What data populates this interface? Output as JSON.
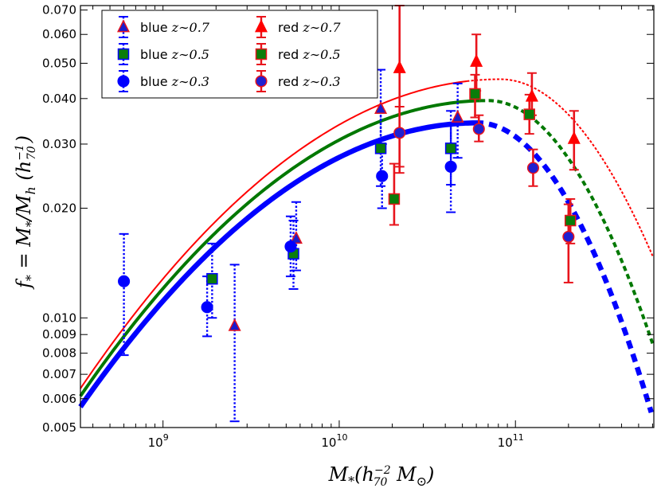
{
  "chart_data": {
    "type": "scatter",
    "title": "",
    "xlabel": "M_*(h_70^-2 M_⊙)",
    "ylabel": "f_* = M_*/M_h (h_70^-1)",
    "xscale": "log",
    "yscale": "log",
    "xlim": [
      340000000.0,
      610000000000.0
    ],
    "ylim": [
      0.005,
      0.072
    ],
    "x_ticks": [
      {
        "value": 1000000000.0,
        "base": "10",
        "exp": "9"
      },
      {
        "value": 10000000000.0,
        "base": "10",
        "exp": "10"
      },
      {
        "value": 100000000000.0,
        "base": "10",
        "exp": "11"
      }
    ],
    "y_ticks": [
      {
        "value": 0.005,
        "label": "0.005"
      },
      {
        "value": 0.006,
        "label": "0.006"
      },
      {
        "value": 0.007,
        "label": "0.007"
      },
      {
        "value": 0.008,
        "label": "0.008"
      },
      {
        "value": 0.009,
        "label": "0.009"
      },
      {
        "value": 0.01,
        "label": "0.010"
      },
      {
        "value": 0.02,
        "label": "0.020"
      },
      {
        "value": 0.03,
        "label": "0.030"
      },
      {
        "value": 0.04,
        "label": "0.040"
      },
      {
        "value": 0.05,
        "label": "0.050"
      },
      {
        "value": 0.06,
        "label": "0.060"
      },
      {
        "value": 0.07,
        "label": "0.070"
      }
    ],
    "legend": {
      "position": "top-left",
      "entries": [
        {
          "sample": "blue",
          "z": "z∼0.7",
          "marker": "triangle",
          "face": "#1b1bcc",
          "edge": "#e8141c",
          "err": "#0000ff",
          "dashed": true
        },
        {
          "sample": "blue",
          "z": "z∼0.5",
          "marker": "square",
          "face": "#0a7d0a",
          "edge": "#0000ff",
          "err": "#0000ff",
          "dashed": true
        },
        {
          "sample": "blue",
          "z": "z∼0.3",
          "marker": "circle",
          "face": "#0000ff",
          "edge": "#0000ff",
          "err": "#0000ff",
          "dashed": true
        },
        {
          "sample": "red",
          "z": "z∼0.7",
          "marker": "triangle",
          "face": "#ff0000",
          "edge": "#ff0000",
          "err": "#e8141c",
          "dashed": false
        },
        {
          "sample": "red",
          "z": "z∼0.5",
          "marker": "square",
          "face": "#0a7d0a",
          "edge": "#e8141c",
          "err": "#e8141c",
          "dashed": false
        },
        {
          "sample": "red",
          "z": "z∼0.3",
          "marker": "circle",
          "face": "#2020d0",
          "edge": "#e8141c",
          "err": "#e8141c",
          "dashed": false
        }
      ]
    },
    "series": [
      {
        "name": "blue z~0.7",
        "marker": "triangle",
        "face": "#1b1bcc",
        "edge": "#e8141c",
        "err": "#0000ff",
        "dashed": true,
        "points": [
          {
            "x": 2550000000.0,
            "y": 0.0095,
            "ylo": 0.0052,
            "yhi": 0.014
          },
          {
            "x": 5700000000.0,
            "y": 0.0165,
            "ylo": 0.0135,
            "yhi": 0.0208
          },
          {
            "x": 17200000000.0,
            "y": 0.0375,
            "ylo": 0.0285,
            "yhi": 0.048
          },
          {
            "x": 47000000000.0,
            "y": 0.0355,
            "ylo": 0.0275,
            "yhi": 0.044
          }
        ]
      },
      {
        "name": "blue z~0.5",
        "marker": "square",
        "face": "#0a7d0a",
        "edge": "#0000ff",
        "err": "#0000ff",
        "dashed": true,
        "points": [
          {
            "x": 1900000000.0,
            "y": 0.0128,
            "ylo": 0.01,
            "yhi": 0.016
          },
          {
            "x": 5500000000.0,
            "y": 0.015,
            "ylo": 0.012,
            "yhi": 0.0185
          },
          {
            "x": 17200000000.0,
            "y": 0.0292,
            "ylo": 0.023,
            "yhi": 0.037
          },
          {
            "x": 43000000000.0,
            "y": 0.0292,
            "ylo": 0.0232,
            "yhi": 0.037
          }
        ]
      },
      {
        "name": "blue z~0.3",
        "marker": "circle",
        "face": "#0000ff",
        "edge": "#0000ff",
        "err": "#0000ff",
        "dashed": true,
        "points": [
          {
            "x": 600000000.0,
            "y": 0.0126,
            "ylo": 0.0079,
            "yhi": 0.017
          },
          {
            "x": 1780000000.0,
            "y": 0.0107,
            "ylo": 0.0089,
            "yhi": 0.013
          },
          {
            "x": 5300000000.0,
            "y": 0.0157,
            "ylo": 0.013,
            "yhi": 0.019
          },
          {
            "x": 17500000000.0,
            "y": 0.0245,
            "ylo": 0.02,
            "yhi": 0.03
          },
          {
            "x": 43000000000.0,
            "y": 0.026,
            "ylo": 0.0195,
            "yhi": 0.034
          }
        ]
      },
      {
        "name": "red z~0.7",
        "marker": "triangle",
        "face": "#ff0000",
        "edge": "#ff0000",
        "err": "#e8141c",
        "dashed": false,
        "points": [
          {
            "x": 22000000000.0,
            "y": 0.0485,
            "ylo": 0.026,
            "yhi": 0.072
          },
          {
            "x": 60000000000.0,
            "y": 0.0505,
            "ylo": 0.042,
            "yhi": 0.06
          },
          {
            "x": 124000000000.0,
            "y": 0.0405,
            "ylo": 0.036,
            "yhi": 0.047
          },
          {
            "x": 215000000000.0,
            "y": 0.031,
            "ylo": 0.0255,
            "yhi": 0.037
          }
        ]
      },
      {
        "name": "red z~0.5",
        "marker": "square",
        "face": "#0a7d0a",
        "edge": "#e8141c",
        "err": "#e8141c",
        "dashed": false,
        "points": [
          {
            "x": 20500000000.0,
            "y": 0.0212,
            "ylo": 0.018,
            "yhi": 0.0265
          },
          {
            "x": 59000000000.0,
            "y": 0.0412,
            "ylo": 0.0355,
            "yhi": 0.0465
          },
          {
            "x": 120000000000.0,
            "y": 0.0362,
            "ylo": 0.032,
            "yhi": 0.041
          },
          {
            "x": 205000000000.0,
            "y": 0.0185,
            "ylo": 0.016,
            "yhi": 0.0212
          }
        ]
      },
      {
        "name": "red z~0.3",
        "marker": "circle",
        "face": "#2020d0",
        "edge": "#e8141c",
        "err": "#e8141c",
        "dashed": false,
        "points": [
          {
            "x": 22000000000.0,
            "y": 0.0322,
            "ylo": 0.025,
            "yhi": 0.038
          },
          {
            "x": 62000000000.0,
            "y": 0.033,
            "ylo": 0.0305,
            "yhi": 0.036
          },
          {
            "x": 126000000000.0,
            "y": 0.0258,
            "ylo": 0.023,
            "yhi": 0.029
          },
          {
            "x": 200000000000.0,
            "y": 0.0167,
            "ylo": 0.0125,
            "yhi": 0.0205
          }
        ]
      }
    ],
    "models": [
      {
        "name": "red model",
        "color": "#ff0000",
        "weight": "thin",
        "peak_x": 82000000000.0,
        "peak_y": 0.0452,
        "solid_to": 53000000000.0,
        "low_x": 340000000.0,
        "low_y": 0.0064,
        "high_x": 600000000000.0,
        "high_y": 0.0148
      },
      {
        "name": "green model",
        "color": "#007800",
        "weight": "medium",
        "peak_x": 70000000000.0,
        "peak_y": 0.0395,
        "solid_to": 63000000000.0,
        "low_x": 340000000.0,
        "low_y": 0.0061,
        "high_x": 600000000000.0,
        "high_y": 0.0085
      },
      {
        "name": "blue model",
        "color": "#0000ff",
        "weight": "thick",
        "peak_x": 61000000000.0,
        "peak_y": 0.0343,
        "solid_to": 59000000000.0,
        "low_x": 340000000.0,
        "low_y": 0.0057,
        "high_x": 590000000000.0,
        "high_y": 0.0055
      }
    ]
  }
}
